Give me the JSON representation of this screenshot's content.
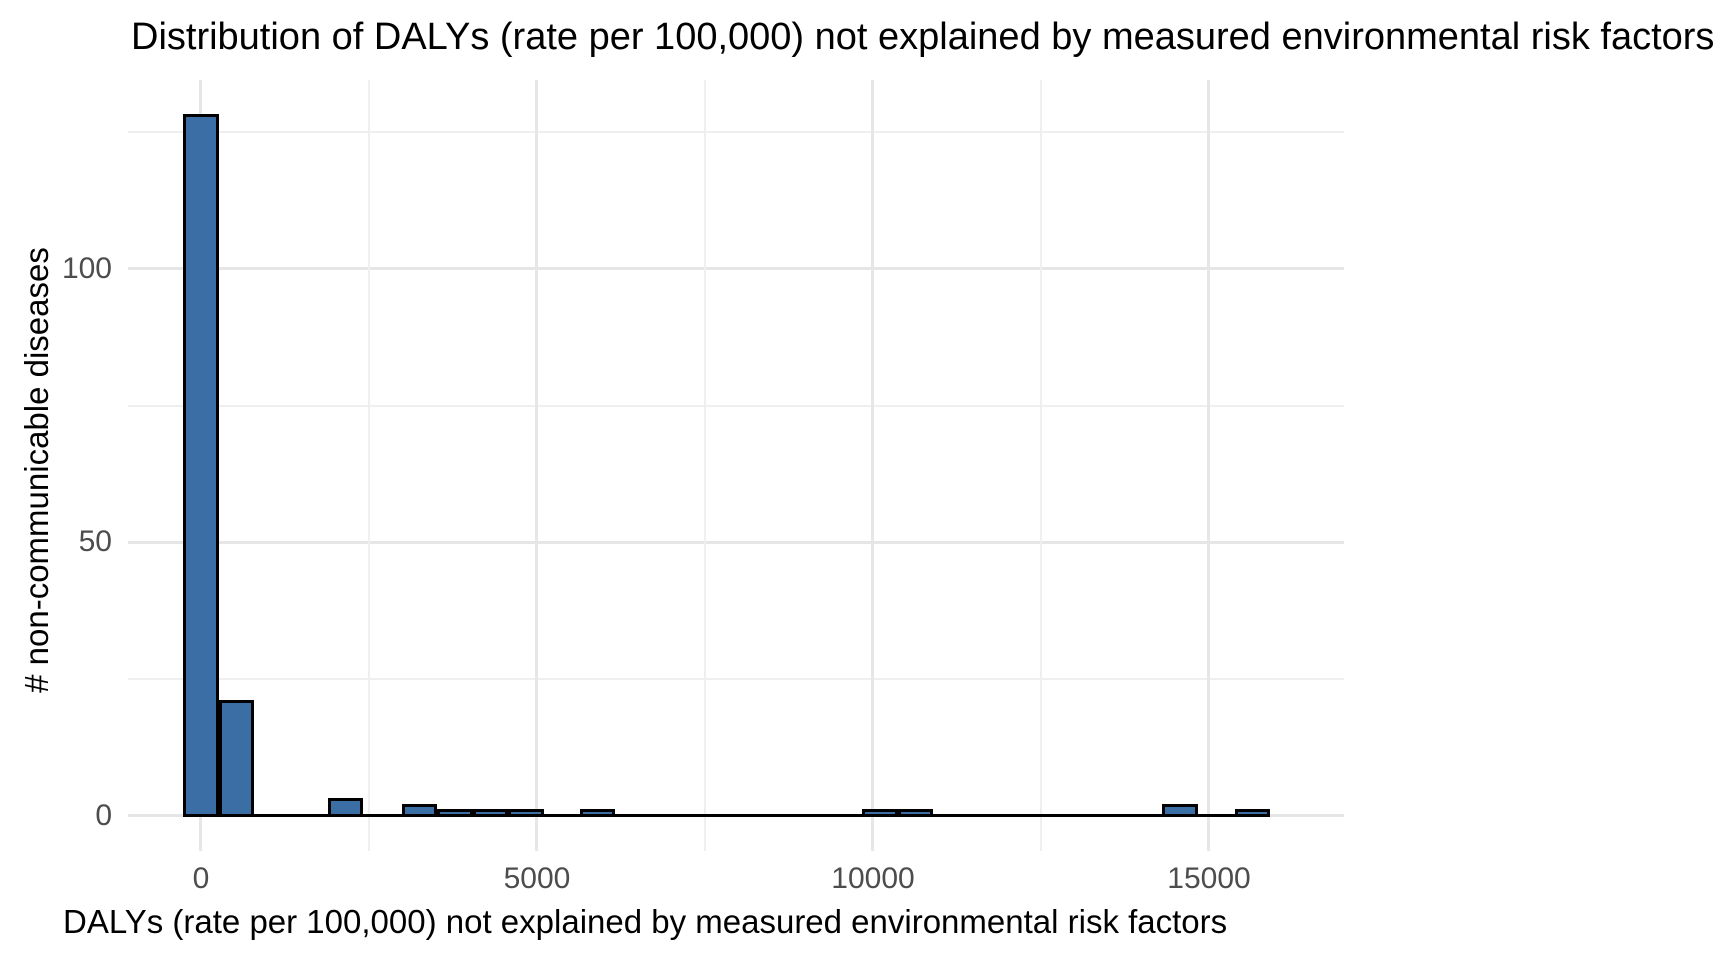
{
  "chart_data": {
    "type": "bar",
    "subtype": "histogram",
    "title": "Distribution of DALYs (rate per 100,000) not explained by measured environmental risk factors",
    "xlabel": "DALYs (rate per 100,000) not explained by measured environmental risk factors",
    "ylabel": "# non-communicable diseases",
    "xlim": [
      -1086,
      17009
    ],
    "ylim": [
      -6.4,
      134.5
    ],
    "x_ticks": [
      {
        "value": 0,
        "label": "0"
      },
      {
        "value": 5000,
        "label": "5000"
      },
      {
        "value": 10000,
        "label": "10000"
      },
      {
        "value": 15000,
        "label": "15000"
      }
    ],
    "y_ticks": [
      {
        "value": 0,
        "label": "0"
      },
      {
        "value": 50,
        "label": "50"
      },
      {
        "value": 100,
        "label": "100"
      }
    ],
    "x_minor_gridlines": [
      2500,
      7500,
      12500
    ],
    "y_minor_gridlines": [
      25,
      75,
      125
    ],
    "grid": true,
    "legend": "none",
    "binwidth": 530,
    "bins": [
      {
        "center": 0,
        "count": 128
      },
      {
        "center": 530,
        "count": 21
      },
      {
        "center": 2150,
        "count": 3
      },
      {
        "center": 3250,
        "count": 2
      },
      {
        "center": 3780,
        "count": 1
      },
      {
        "center": 4310,
        "count": 1
      },
      {
        "center": 4840,
        "count": 1
      },
      {
        "center": 5900,
        "count": 1
      },
      {
        "center": 10100,
        "count": 1
      },
      {
        "center": 10630,
        "count": 1
      },
      {
        "center": 14570,
        "count": 2
      },
      {
        "center": 15650,
        "count": 1
      }
    ],
    "zero_count_baseline_extent": [
      -265,
      15915
    ],
    "colors": {
      "bar_fill": "#3A6EA5",
      "bar_stroke": "#000000",
      "grid_major": "#E6E6E6",
      "grid_minor": "#EFEFEF",
      "tick_label": "#4D4D4D",
      "text": "#000000",
      "background": "#FFFFFF"
    }
  }
}
